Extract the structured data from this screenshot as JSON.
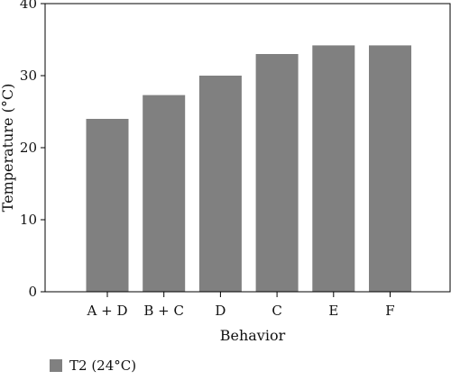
{
  "chart_data": {
    "type": "bar",
    "categories": [
      "A + D",
      "B + C",
      "D",
      "C",
      "E",
      "F"
    ],
    "series": [
      {
        "name": "T2 (24°C)",
        "values": [
          24,
          27.3,
          30,
          33,
          34.2,
          34.2
        ],
        "color": "#808080"
      }
    ],
    "xlabel": "Behavior",
    "ylabel": "Temperature (°C)",
    "ylim": [
      0,
      40
    ],
    "yticks": [
      0,
      10,
      20,
      30,
      40
    ],
    "grid": false,
    "legend_position": "bottom-left"
  }
}
